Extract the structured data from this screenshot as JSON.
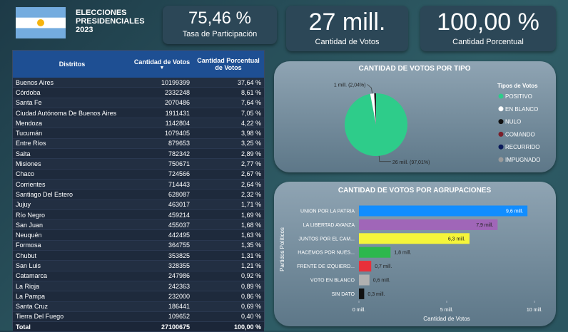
{
  "header": {
    "title": "ELECCIONES PRESIDENCIALES 2023"
  },
  "kpis": [
    {
      "value": "75,46 %",
      "label": "Tasa de Participación"
    },
    {
      "value": "27 mill.",
      "label": "Cantidad de Votos"
    },
    {
      "value": "100,00 %",
      "label": "Cantidad Porcentual"
    }
  ],
  "table": {
    "columns": [
      "Distritos",
      "Cantidad de Votos",
      "Cantidad Porcentual de Votos"
    ],
    "rows": [
      [
        "Buenos Aires",
        "10199399",
        "37,64 %"
      ],
      [
        "Córdoba",
        "2332248",
        "8,61 %"
      ],
      [
        "Santa Fe",
        "2070486",
        "7,64 %"
      ],
      [
        "Ciudad Autónoma De Buenos Aires",
        "1911431",
        "7,05 %"
      ],
      [
        "Mendoza",
        "1142804",
        "4,22 %"
      ],
      [
        "Tucumán",
        "1079405",
        "3,98 %"
      ],
      [
        "Entre Ríos",
        "879653",
        "3,25 %"
      ],
      [
        "Salta",
        "782342",
        "2,89 %"
      ],
      [
        "Misiones",
        "750671",
        "2,77 %"
      ],
      [
        "Chaco",
        "724566",
        "2,67 %"
      ],
      [
        "Corrientes",
        "714443",
        "2,64 %"
      ],
      [
        "Santiago Del Estero",
        "628087",
        "2,32 %"
      ],
      [
        "Jujuy",
        "463017",
        "1,71 %"
      ],
      [
        "Río Negro",
        "459214",
        "1,69 %"
      ],
      [
        "San Juan",
        "455037",
        "1,68 %"
      ],
      [
        "Neuquén",
        "442495",
        "1,63 %"
      ],
      [
        "Formosa",
        "364755",
        "1,35 %"
      ],
      [
        "Chubut",
        "353825",
        "1,31 %"
      ],
      [
        "San Luis",
        "328355",
        "1,21 %"
      ],
      [
        "Catamarca",
        "247986",
        "0,92 %"
      ],
      [
        "La Rioja",
        "242363",
        "0,89 %"
      ],
      [
        "La Pampa",
        "232000",
        "0,86 %"
      ],
      [
        "Santa Cruz",
        "186441",
        "0,69 %"
      ],
      [
        "Tierra Del Fuego",
        "109652",
        "0,40 %"
      ]
    ],
    "total": [
      "Total",
      "27100675",
      "100,00 %"
    ]
  },
  "chart_data": [
    {
      "type": "pie",
      "title": "CANTIDAD DE VOTOS POR TIPO",
      "legend_title": "Tipos de Votos",
      "legend": "right",
      "categories": [
        "POSITIVO",
        "EN BLANCO",
        "NULO",
        "COMANDO",
        "RECURRIDO",
        "IMPUGNADO"
      ],
      "values": [
        97.01,
        2.04,
        0.9,
        0.03,
        0.01,
        0.01
      ],
      "value_labels": [
        "26 mill. (97,01%)",
        "1 mill. (2,04%)",
        null,
        null,
        null,
        null
      ],
      "colors": [
        "#2ecc8a",
        "#ffffff",
        "#111111",
        "#7a1e2a",
        "#0a1a5a",
        "#9a9a9a"
      ]
    },
    {
      "type": "hbar",
      "title": "CANTIDAD DE VOTOS POR AGRUPACIONES",
      "xlabel": "Cantidad de Votos",
      "ylabel": "Partidos Políticos",
      "categories": [
        "UNION POR LA PATRIA",
        "LA LIBERTAD AVANZA",
        "JUNTOS POR EL CAM...",
        "HACEMOS POR NUES...",
        "FRENTE DE IZQUIERD...",
        "VOTO EN BLANCO",
        "SIN DATO"
      ],
      "values": [
        9.6,
        7.9,
        6.3,
        1.8,
        0.7,
        0.6,
        0.3
      ],
      "value_labels": [
        "9,6 mill.",
        "7,9 mill.",
        "6,3 mill.",
        "1,8 mill.",
        "0,7 mill.",
        "0,6 mill.",
        "0,3 mill."
      ],
      "colors": [
        "#118dff",
        "#a066b8",
        "#f5f53a",
        "#2db84d",
        "#e8303a",
        "#b0b0b0",
        "#111111"
      ],
      "xlim": [
        0,
        10
      ],
      "xticks": [
        {
          "value": 0,
          "label": "0 mill."
        },
        {
          "value": 5,
          "label": "5 mill."
        },
        {
          "value": 10,
          "label": "10 mill."
        }
      ]
    }
  ]
}
